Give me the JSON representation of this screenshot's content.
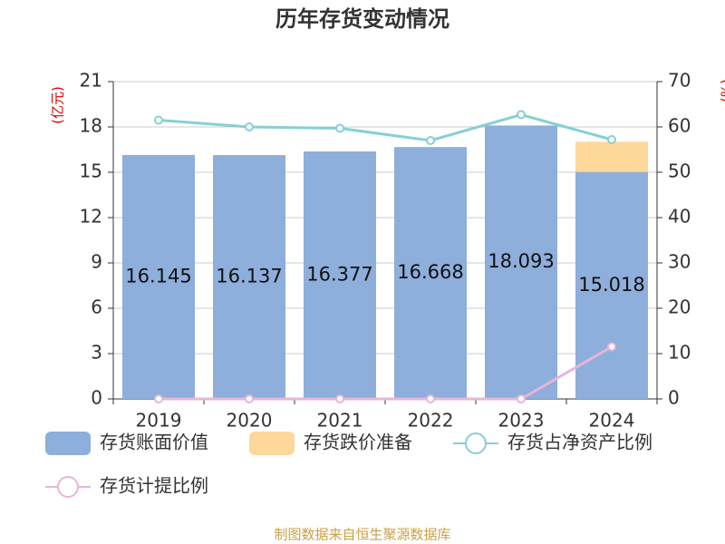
{
  "chart_data": {
    "type": "bar",
    "title": "历年存货变动情况",
    "y_label": "(亿元)",
    "y2_label": "(%)",
    "source": "制图数据来自恒生聚源数据库",
    "categories": [
      "2019",
      "2020",
      "2021",
      "2022",
      "2023",
      "2024"
    ],
    "series": [
      {
        "name": "存货账面价值",
        "color": "#8eaedb",
        "values": [
          16.145,
          16.137,
          16.377,
          16.668,
          18.093,
          15.018
        ],
        "value_labels": [
          "16.145",
          "16.137",
          "16.377",
          "16.668",
          "18.093",
          "15.018"
        ]
      },
      {
        "name": "存货跌价准备",
        "color": "#fdd89a",
        "values": [
          0,
          0,
          0,
          0,
          0,
          2.0
        ]
      },
      {
        "name": "存货占净资产比例",
        "color": "#86d0d4",
        "type": "line",
        "axis": "y2",
        "values": [
          61.5,
          60.0,
          59.7,
          57.0,
          62.7,
          57.2
        ]
      },
      {
        "name": "存货计提比例",
        "color": "#e8b4d8",
        "type": "line",
        "axis": "y2",
        "values": [
          0,
          0,
          0,
          0,
          0,
          11.5
        ]
      }
    ],
    "ylim": [
      0,
      21
    ],
    "yticks": [
      0,
      3,
      6,
      9,
      12,
      15,
      18,
      21
    ],
    "y2lim": [
      0,
      70
    ],
    "y2ticks": [
      0,
      10,
      20,
      30,
      40,
      50,
      60,
      70
    ],
    "grid": true,
    "stacked": true
  }
}
